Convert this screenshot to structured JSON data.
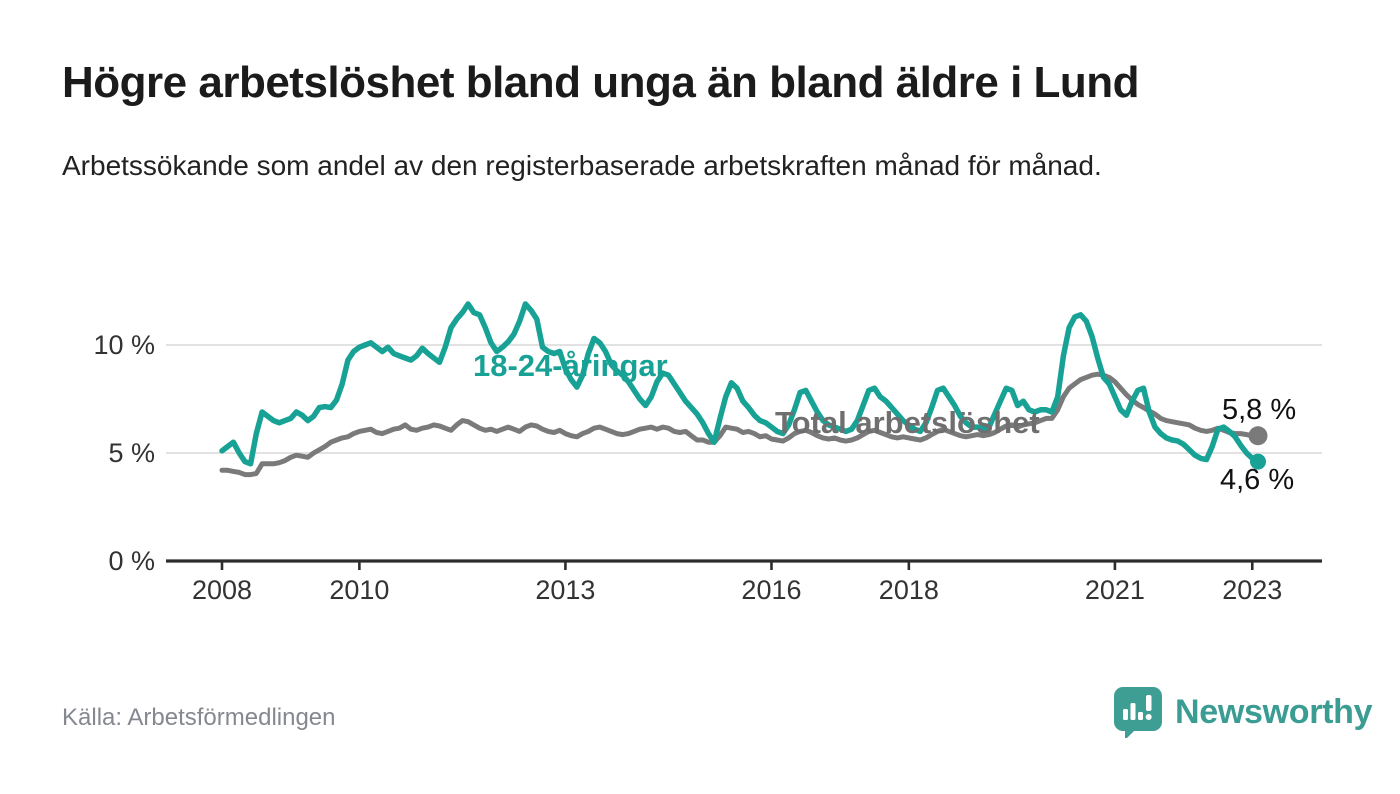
{
  "header": {
    "title": "Högre arbetslöshet bland unga än bland äldre i Lund",
    "subtitle": "Arbetssökande som andel av den registerbaserade arbetskraften månad för månad."
  },
  "footer": {
    "source": "Källa: Arbetsförmedlingen",
    "brand": "Newsworthy"
  },
  "colors": {
    "young_line": "#18a296",
    "total_line": "#7a7a7a",
    "axis": "#2d2d2d",
    "gridline": "#d9d9d9",
    "brand_teal": "#3f9e93"
  },
  "chart_data": {
    "type": "line",
    "title": "Högre arbetslöshet bland unga än bland äldre i Lund",
    "subtitle": "Arbetssökande som andel av den registerbaserade arbetskraften månad för månad.",
    "x_unit": "month",
    "x_start": "2008-01",
    "x_end": "2023-02",
    "x_ticks": [
      "2008",
      "2010",
      "2013",
      "2016",
      "2018",
      "2021",
      "2023"
    ],
    "y_ticks": [
      "0 %",
      "5 %",
      "10 %"
    ],
    "y_gridlines": [
      5,
      10
    ],
    "ylim": [
      0,
      12.5
    ],
    "grid": "horizontal-only",
    "legend_position": "inline-labels",
    "series": [
      {
        "name": "18-24-åringar",
        "color": "#18a296",
        "end_label": "4,6 %",
        "end_value": 4.6,
        "values": [
          5.1,
          5.3,
          5.5,
          5.0,
          4.6,
          4.5,
          5.9,
          6.9,
          6.7,
          6.5,
          6.4,
          6.5,
          6.6,
          6.9,
          6.75,
          6.5,
          6.7,
          7.1,
          7.15,
          7.1,
          7.45,
          8.2,
          9.3,
          9.7,
          9.9,
          10.0,
          10.1,
          9.9,
          9.7,
          9.9,
          9.6,
          9.5,
          9.4,
          9.3,
          9.5,
          9.85,
          9.6,
          9.4,
          9.2,
          9.9,
          10.8,
          11.2,
          11.5,
          11.9,
          11.5,
          11.4,
          10.8,
          10.1,
          9.7,
          9.9,
          10.15,
          10.5,
          11.1,
          11.9,
          11.6,
          11.2,
          9.9,
          9.7,
          9.6,
          9.7,
          8.9,
          8.4,
          8.05,
          8.6,
          9.6,
          10.3,
          10.1,
          9.7,
          9.1,
          8.8,
          8.6,
          8.3,
          7.9,
          7.5,
          7.2,
          7.6,
          8.3,
          8.7,
          8.6,
          8.2,
          7.8,
          7.4,
          7.1,
          6.8,
          6.4,
          5.9,
          5.5,
          6.6,
          7.6,
          8.25,
          8.0,
          7.4,
          7.1,
          6.75,
          6.5,
          6.4,
          6.2,
          6.0,
          5.9,
          6.3,
          7.0,
          7.8,
          7.9,
          7.4,
          6.9,
          6.5,
          6.3,
          6.2,
          6.1,
          6.0,
          6.1,
          6.5,
          7.2,
          7.9,
          8.0,
          7.6,
          7.4,
          7.1,
          6.8,
          6.5,
          6.3,
          6.1,
          6.0,
          6.4,
          7.1,
          7.9,
          8.0,
          7.6,
          7.2,
          6.7,
          6.4,
          6.2,
          6.2,
          6.1,
          6.2,
          6.8,
          7.4,
          8.0,
          7.9,
          7.2,
          7.4,
          7.0,
          6.9,
          7.0,
          7.0,
          6.9,
          7.6,
          9.5,
          10.8,
          11.3,
          11.4,
          11.1,
          10.4,
          9.4,
          8.5,
          8.2,
          7.6,
          7.0,
          6.75,
          7.4,
          7.9,
          8.0,
          6.9,
          6.2,
          5.9,
          5.7,
          5.6,
          5.55,
          5.4,
          5.15,
          4.9,
          4.75,
          4.7,
          5.3,
          6.1,
          6.2,
          6.0,
          5.75,
          5.35,
          5.0,
          4.75,
          4.6
        ]
      },
      {
        "name": "Total arbetslöshet",
        "color": "#7a7a7a",
        "end_label": "5,8 %",
        "end_value": 5.8,
        "values": [
          4.2,
          4.2,
          4.15,
          4.1,
          4.0,
          4.0,
          4.05,
          4.5,
          4.5,
          4.5,
          4.55,
          4.65,
          4.8,
          4.9,
          4.85,
          4.8,
          5.0,
          5.15,
          5.3,
          5.5,
          5.6,
          5.7,
          5.75,
          5.9,
          6.0,
          6.05,
          6.1,
          5.95,
          5.9,
          6.0,
          6.1,
          6.15,
          6.3,
          6.1,
          6.05,
          6.15,
          6.2,
          6.3,
          6.25,
          6.15,
          6.05,
          6.3,
          6.5,
          6.45,
          6.3,
          6.15,
          6.05,
          6.1,
          6.0,
          6.1,
          6.2,
          6.1,
          6.0,
          6.2,
          6.3,
          6.25,
          6.1,
          6.0,
          5.95,
          6.05,
          5.9,
          5.8,
          5.75,
          5.9,
          6.0,
          6.15,
          6.2,
          6.1,
          6.0,
          5.9,
          5.85,
          5.9,
          6.0,
          6.1,
          6.15,
          6.2,
          6.1,
          6.2,
          6.15,
          6.0,
          5.95,
          6.0,
          5.8,
          5.6,
          5.6,
          5.5,
          5.5,
          5.8,
          6.2,
          6.15,
          6.1,
          5.95,
          6.0,
          5.9,
          5.75,
          5.8,
          5.65,
          5.6,
          5.55,
          5.7,
          5.9,
          6.0,
          6.05,
          5.95,
          5.8,
          5.7,
          5.65,
          5.7,
          5.6,
          5.55,
          5.6,
          5.7,
          5.85,
          6.0,
          6.05,
          5.95,
          5.85,
          5.75,
          5.7,
          5.75,
          5.7,
          5.65,
          5.6,
          5.7,
          5.85,
          6.0,
          6.1,
          6.0,
          5.9,
          5.8,
          5.75,
          5.8,
          5.85,
          5.8,
          5.85,
          5.95,
          6.1,
          6.25,
          6.3,
          6.2,
          6.3,
          6.35,
          6.4,
          6.5,
          6.6,
          6.6,
          7.0,
          7.6,
          8.0,
          8.2,
          8.4,
          8.5,
          8.6,
          8.65,
          8.6,
          8.5,
          8.3,
          8.0,
          7.7,
          7.45,
          7.25,
          7.1,
          6.95,
          6.8,
          6.6,
          6.5,
          6.45,
          6.4,
          6.35,
          6.3,
          6.15,
          6.05,
          6.0,
          6.05,
          6.15,
          6.05,
          5.95,
          5.9,
          5.9,
          5.85,
          5.8,
          5.8
        ]
      }
    ]
  }
}
